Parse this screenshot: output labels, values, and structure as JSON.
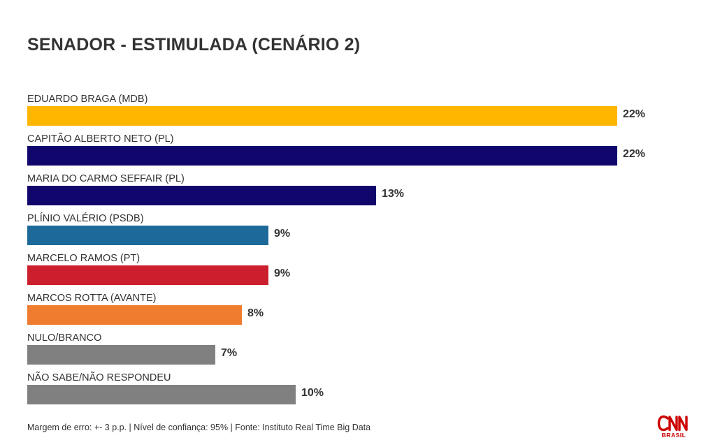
{
  "title": "SENADOR - ESTIMULADA (CENÁRIO 2)",
  "chart_data": {
    "type": "bar",
    "orientation": "horizontal",
    "title": "SENADOR - ESTIMULADA (CENÁRIO 2)",
    "xlim": [
      0,
      22
    ],
    "grid": false,
    "legend": "none",
    "categories": [
      "EDUARDO BRAGA (MDB)",
      "CAPITÃO ALBERTO NETO (PL)",
      "MARIA DO CARMO SEFFAIR (PL)",
      "PLÍNIO VALÉRIO (PSDB)",
      "MARCELO RAMOS (PT)",
      "MARCOS ROTTA (AVANTE)",
      "NULO/BRANCO",
      "NÃO SABE/NÃO RESPONDEU"
    ],
    "values": [
      22,
      22,
      13,
      9,
      9,
      8,
      7,
      10
    ],
    "value_labels": [
      "22%",
      "22%",
      "13%",
      "9%",
      "9%",
      "8%",
      "7%",
      "10%"
    ],
    "colors": [
      "#FFB600",
      "#11066C",
      "#11066C",
      "#1D6A9A",
      "#CC1F2E",
      "#F07C2F",
      "#808080",
      "#808080"
    ]
  },
  "footer": {
    "note": "Margem de erro: +- 3 p.p. | Nível de confiança: 95% | Fonte: Instituto Real Time Big Data"
  },
  "brand": {
    "logo_text": "CNN",
    "logo_subtext": "BRASIL",
    "color": "#CC0000"
  }
}
